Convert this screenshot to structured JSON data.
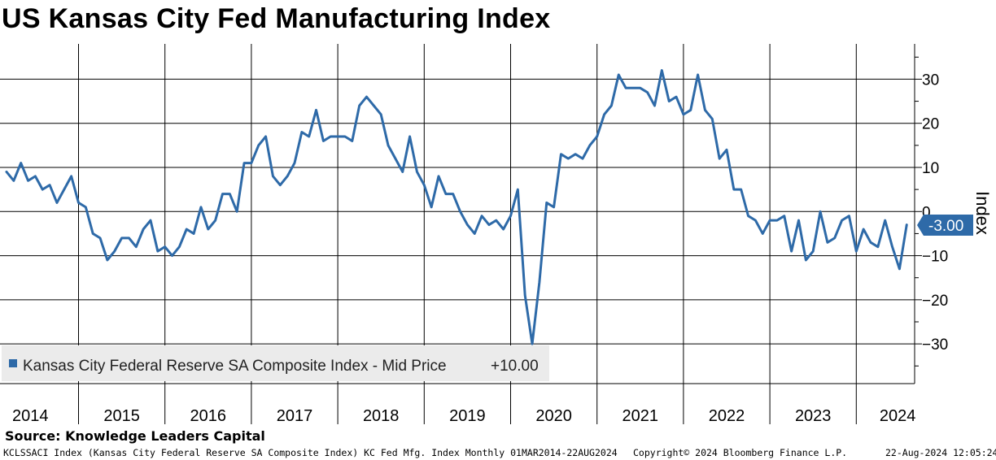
{
  "title": "US Kansas City Fed Manufacturing Index",
  "source": "Source: Knowledge Leaders Capital",
  "footer": {
    "left": "KCLSSACI Index (Kansas City Federal Reserve SA Composite Index) KC Fed Mfg. Index  Monthly 01MAR2014-22AUG2024",
    "middle": "Copyright© 2024 Bloomberg Finance L.P.",
    "right": "22-Aug-2024 12:05:24"
  },
  "colors": {
    "series": "#2e6aa8",
    "grid": "#000000",
    "legend_bg": "#ebebeb"
  },
  "chart_data": {
    "type": "line",
    "title": "US Kansas City Fed Manufacturing Index",
    "ylabel": "Index",
    "xlabel": "",
    "ylim": [
      -39,
      38
    ],
    "yticks": [
      -30,
      -20,
      -10,
      0,
      10,
      20,
      30
    ],
    "ytick_labels": [
      "−30",
      "−20",
      "−10",
      "0",
      "10",
      "20",
      "30"
    ],
    "years": [
      "2014",
      "2015",
      "2016",
      "2017",
      "2018",
      "2019",
      "2020",
      "2021",
      "2022",
      "2023",
      "2024"
    ],
    "grid": "vertical at year boundaries",
    "legend": {
      "position": "bottom-left",
      "label": "Kansas City Federal Reserve SA Composite Index - Mid Price",
      "value": "+10.00"
    },
    "last_value_label": "-3.00",
    "start": "2014-03",
    "frequency": "monthly",
    "series": [
      {
        "name": "Kansas City Federal Reserve SA Composite Index",
        "values": [
          9,
          7,
          11,
          7,
          8,
          5,
          6,
          2,
          5,
          8,
          2,
          1,
          -5,
          -6,
          -11,
          -9,
          -6,
          -6,
          -8,
          -4,
          -2,
          -9,
          -8,
          -10,
          -8,
          -4,
          -5,
          1,
          -4,
          -2,
          4,
          4,
          0,
          11,
          11,
          15,
          17,
          8,
          6,
          8,
          11,
          18,
          17,
          23,
          16,
          17,
          17,
          17,
          16,
          24,
          26,
          24,
          22,
          15,
          12,
          9,
          17,
          9,
          6,
          1,
          8,
          4,
          4,
          0,
          -3,
          -5,
          -1,
          -3,
          -2,
          -4,
          -1,
          5,
          -19,
          -30,
          -16,
          2,
          1,
          13,
          12,
          13,
          12,
          15,
          17,
          22,
          24,
          31,
          28,
          28,
          28,
          27,
          24,
          32,
          25,
          26,
          22,
          23,
          31,
          23,
          21,
          12,
          14,
          5,
          5,
          -1,
          -2,
          -5,
          -2,
          -2,
          -1,
          -9,
          -2,
          -11,
          -9,
          0,
          -7,
          -6,
          -2,
          -1,
          -9,
          -4,
          -7,
          -8,
          -2,
          -8,
          -13,
          -3
        ]
      }
    ]
  }
}
